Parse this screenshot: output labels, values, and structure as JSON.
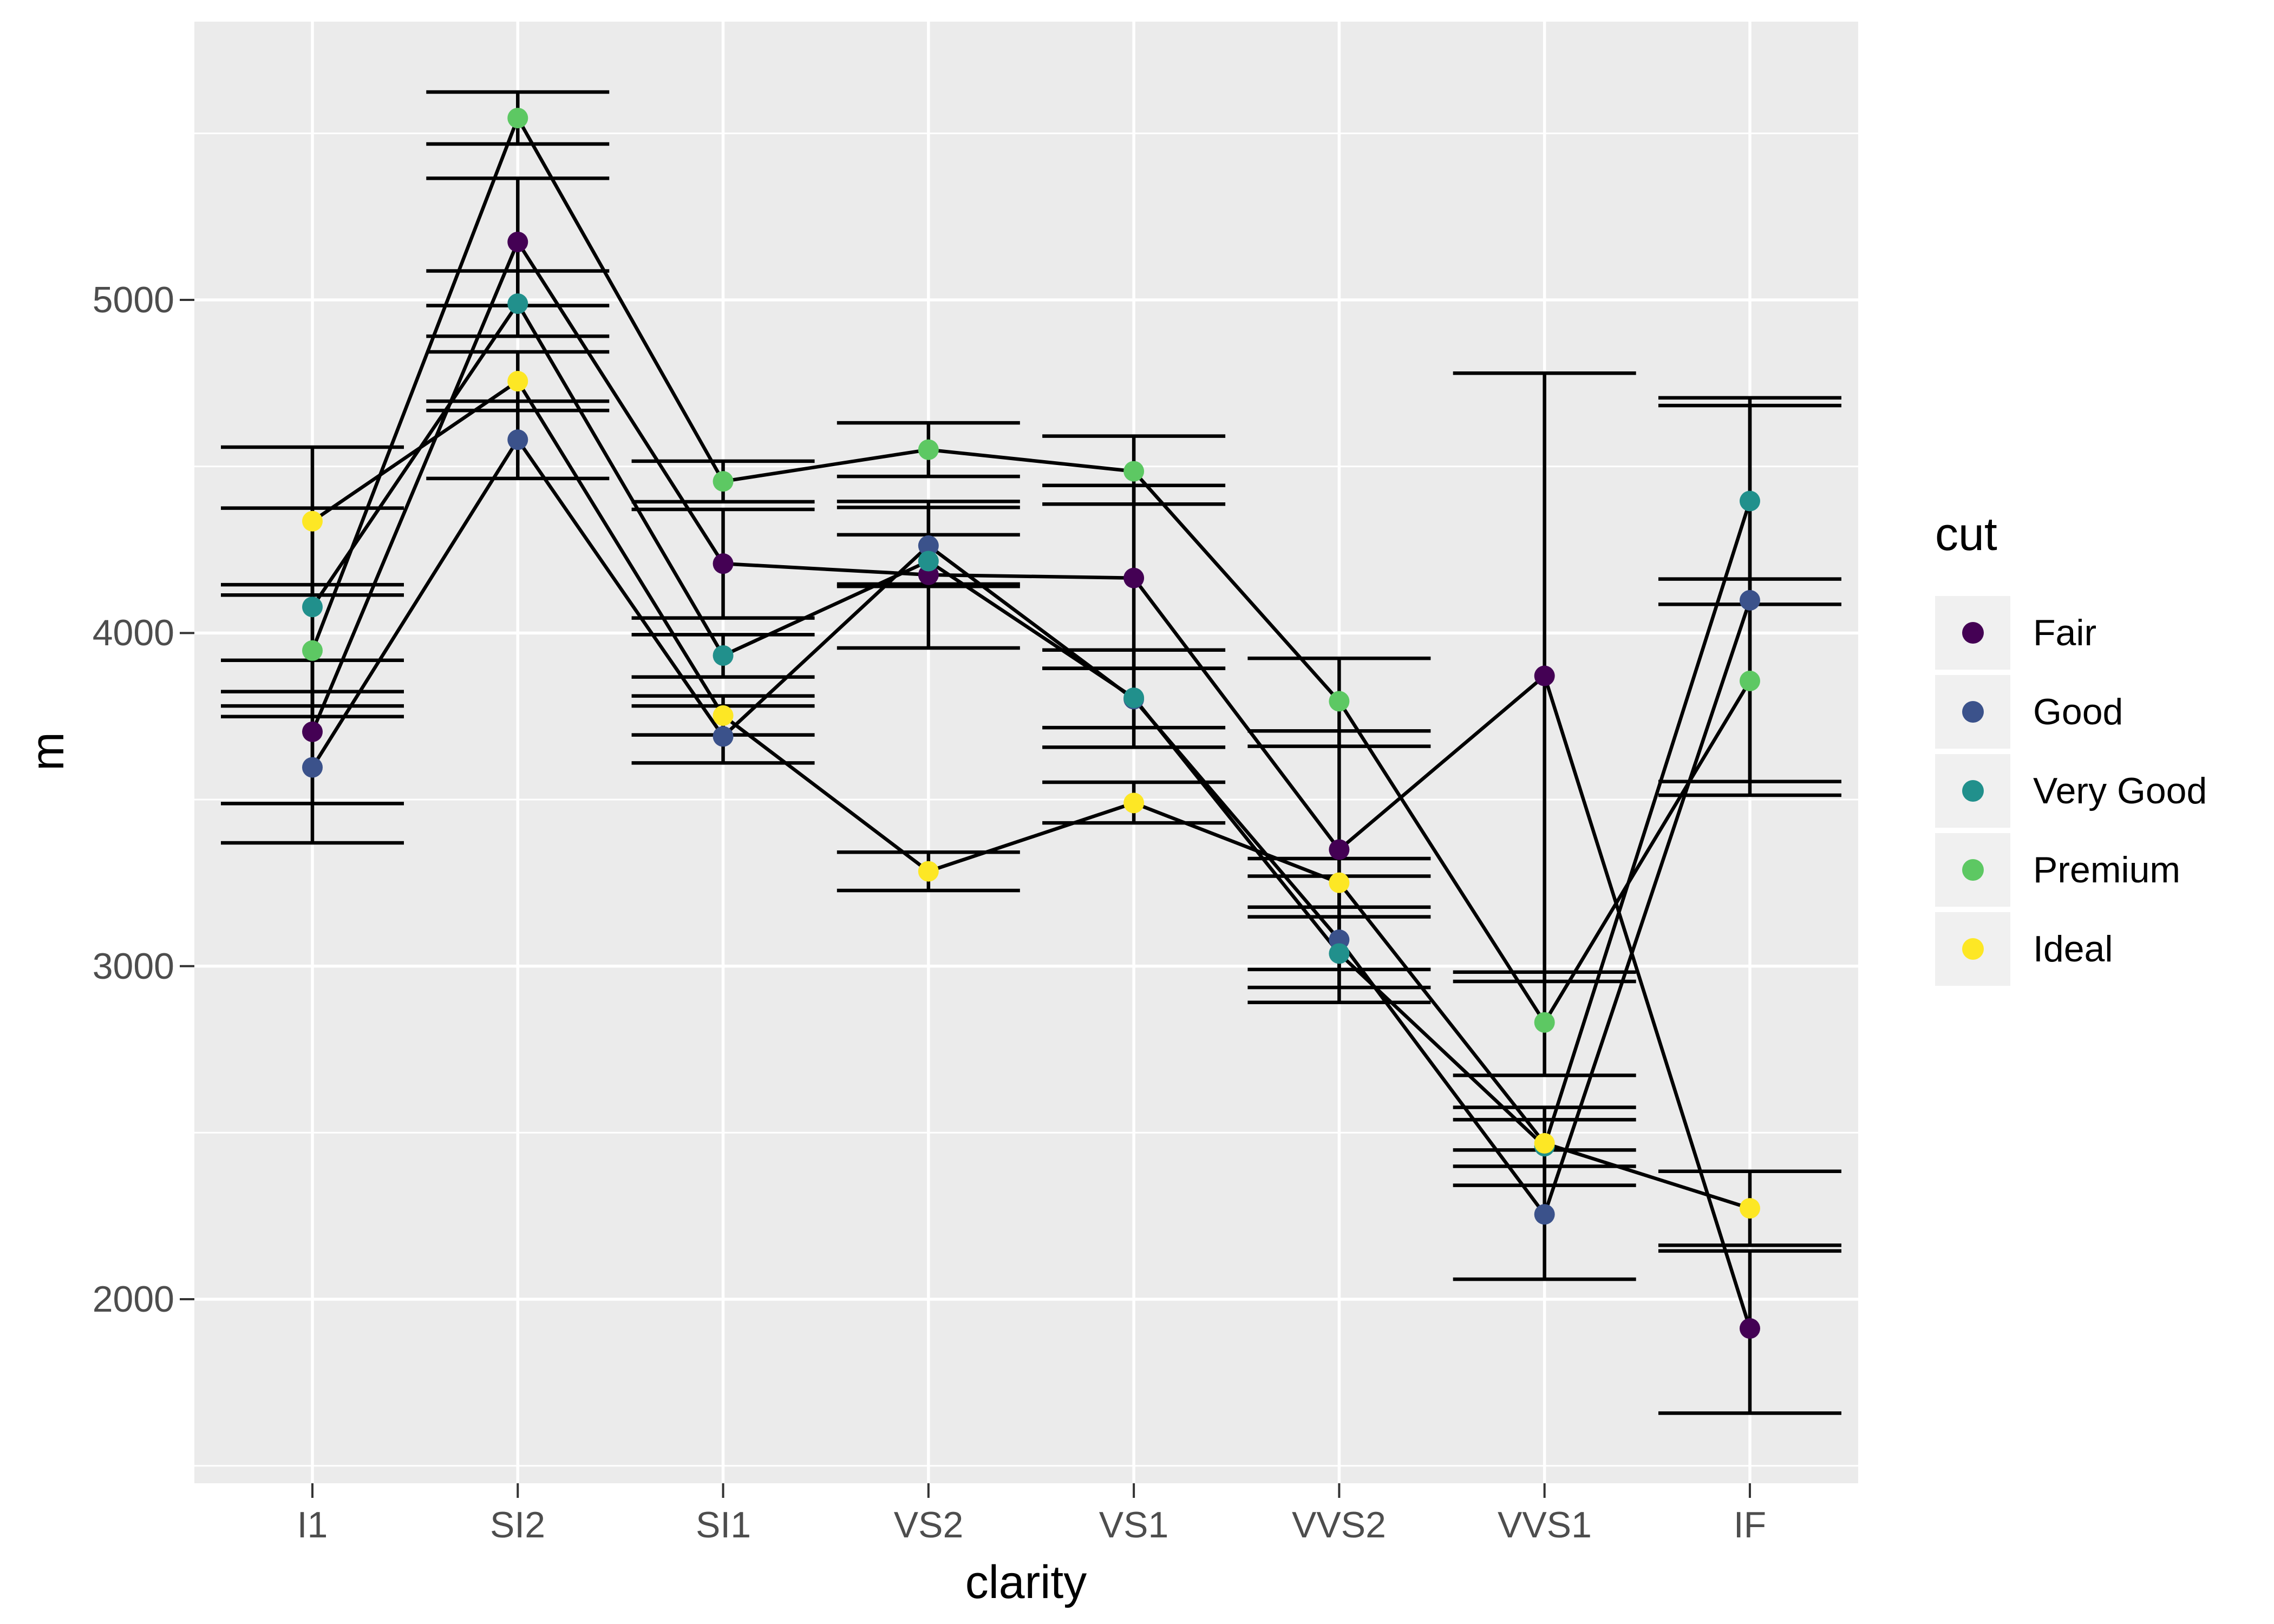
{
  "chart_data": {
    "type": "line",
    "title": "",
    "xlabel": "clarity",
    "ylabel": "m",
    "categories": [
      "I1",
      "SI2",
      "SI1",
      "VS2",
      "VS1",
      "VVS2",
      "VVS1",
      "IF"
    ],
    "y_tick_labels": [
      "5000",
      "4000",
      "3000",
      "2000"
    ],
    "y_tick_values": [
      5000,
      4000,
      3000,
      2000
    ],
    "y_minor_values": [
      5500,
      4500,
      3500,
      2500,
      1500
    ],
    "ylim": [
      1450,
      5835
    ],
    "grid": true,
    "has_error_bars": true,
    "legend": {
      "title": "cut",
      "position": "right"
    },
    "series": [
      {
        "name": "Fair",
        "color": "#440154",
        "means": [
          3703.5,
          5173.9,
          4208.3,
          4174.7,
          4165.1,
          3349.8,
          3871.3,
          1912.3
        ],
        "ci_low": [
          3488,
          4983,
          4045,
          3955,
          3894,
          2990,
          2954,
          1658
        ],
        "ci_high": [
          3918,
          5365,
          4371,
          4395,
          4443,
          3706,
          4780,
          2145
        ]
      },
      {
        "name": "Good",
        "color": "#3B528B",
        "means": [
          3596.6,
          4580.3,
          3689.5,
          4262.2,
          3801.4,
          3079.1,
          2254.8,
          4098.2
        ],
        "ci_low": [
          3370,
          4464,
          3610,
          4147,
          3657,
          2891,
          2060,
          3513
        ],
        "ci_high": [
          3824,
          4696,
          3781,
          4377,
          3949,
          3270,
          2448,
          4683
        ]
      },
      {
        "name": "Very Good",
        "color": "#21908C",
        "means": [
          4078.2,
          4988.7,
          3932.4,
          4215.8,
          3805.4,
          3037.8,
          2459.4,
          4396.2
        ],
        "ci_low": [
          3781,
          4891,
          3868,
          4140,
          3716,
          2936,
          2342,
          4086
        ],
        "ci_high": [
          4375,
          5087,
          3995,
          4295,
          3894,
          3148,
          2576,
          4706
        ]
      },
      {
        "name": "Premium",
        "color": "#5DC863",
        "means": [
          3947.3,
          5545.9,
          4455.3,
          4550.3,
          4485.5,
          3795.1,
          2831.0,
          3856.1
        ],
        "ci_low": [
          3749,
          5468,
          4394,
          4470,
          4387,
          3660,
          2672,
          3554
        ],
        "ci_high": [
          4145,
          5624,
          4516,
          4631,
          4591,
          3924,
          2982,
          4162
        ]
      },
      {
        "name": "Ideal",
        "color": "#FDE725",
        "means": [
          4335.7,
          4756.0,
          3752.1,
          3284.6,
          3489.7,
          3250.3,
          2468.1,
          2272.9
        ],
        "ci_low": [
          4114,
          4668,
          3694,
          3227,
          3430,
          3177,
          2399,
          2162
        ],
        "ci_high": [
          4558,
          4844,
          3811,
          3342,
          3552,
          3323,
          2539,
          2384
        ]
      }
    ]
  },
  "colors": {
    "panel_background": "#EBEBEB",
    "gridline": "#FFFFFF",
    "legend_key_background": "#F0F0F0",
    "axis_text": "#4D4D4D",
    "tick_mark": "#333333",
    "line_and_errorbar": "#000000"
  }
}
